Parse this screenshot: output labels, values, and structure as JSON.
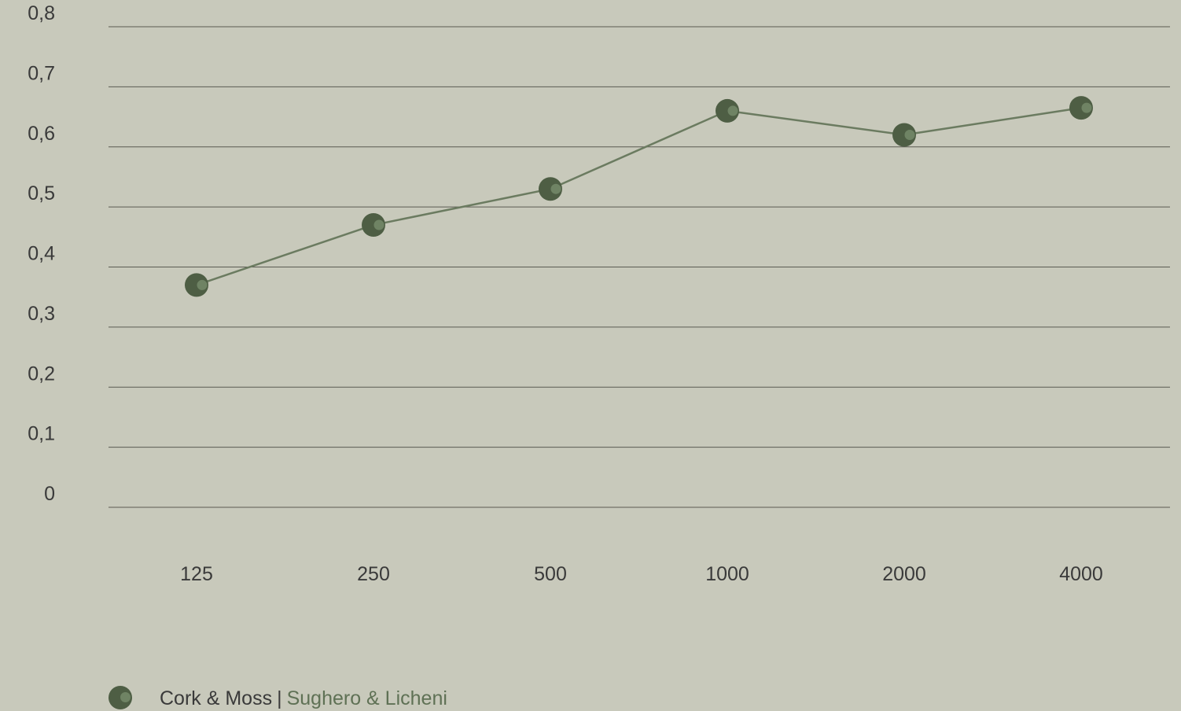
{
  "chart_data": {
    "type": "line",
    "categories": [
      "125",
      "250",
      "500",
      "1000",
      "2000",
      "4000"
    ],
    "series": [
      {
        "name": "Cork & Moss | Sughero & Licheni",
        "values": [
          0.37,
          0.47,
          0.53,
          0.66,
          0.62,
          0.665
        ]
      }
    ],
    "y_ticks": [
      "0",
      "0,1",
      "0,2",
      "0,3",
      "0,4",
      "0,5",
      "0,6",
      "0,7",
      "0,8"
    ],
    "ylim": [
      0,
      0.8
    ],
    "grid": true,
    "legend_position": "bottom-left",
    "colors": {
      "background": "#c8c9bb",
      "line": "#6b7b60",
      "marker": "#4e5e44",
      "marker_highlight": "#6f8364",
      "gridline": "#5b5b52",
      "text": "#3a3a3a",
      "legend_accent": "#5f7155"
    }
  },
  "legend": {
    "name": "Cork & Moss",
    "separator": "|",
    "alt_name": "Sughero & Licheni",
    "marker_icon": "circle-marker-icon"
  }
}
